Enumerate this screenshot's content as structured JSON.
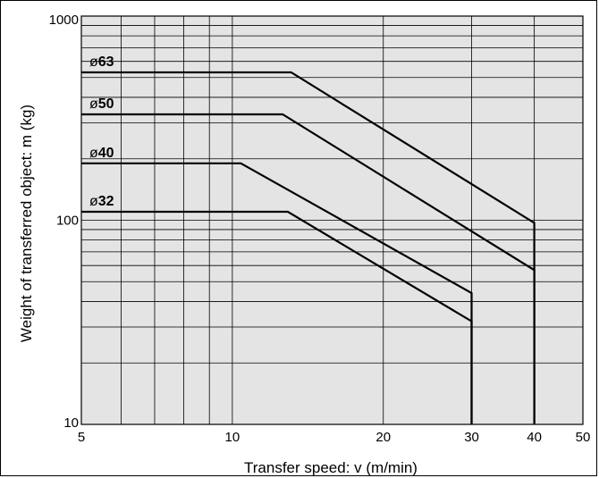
{
  "chart_data": {
    "type": "line",
    "title": "",
    "xlabel": "Transfer speed: v (m/min)",
    "ylabel": "Weight  of transferred object: m (kg)",
    "x_scale": "log",
    "y_scale": "log",
    "xlim": [
      5,
      50
    ],
    "ylim": [
      10,
      1000
    ],
    "x_ticks": [
      5,
      10,
      20,
      30,
      40,
      50
    ],
    "y_ticks": [
      10,
      100,
      1000
    ],
    "x_grid": [
      5,
      6,
      7,
      8,
      9,
      10,
      20,
      30,
      40,
      50
    ],
    "y_grid": [
      10,
      20,
      30,
      40,
      50,
      60,
      70,
      80,
      90,
      100,
      200,
      300,
      400,
      500,
      600,
      700,
      800,
      900,
      1000
    ],
    "grid": true,
    "background_color": "#e4e4e4",
    "line_color": "#000000",
    "series": [
      {
        "name": "63",
        "prefix": "ø",
        "points": [
          [
            5,
            530
          ],
          [
            13.1,
            530
          ],
          [
            40,
            97
          ],
          [
            40,
            10
          ]
        ]
      },
      {
        "name": "50",
        "prefix": "ø",
        "points": [
          [
            5,
            330
          ],
          [
            12.6,
            330
          ],
          [
            40,
            57
          ],
          [
            40,
            10
          ]
        ]
      },
      {
        "name": "40",
        "prefix": "ø",
        "points": [
          [
            5,
            190
          ],
          [
            10.4,
            190
          ],
          [
            30,
            44
          ],
          [
            30,
            10
          ]
        ]
      },
      {
        "name": "32",
        "prefix": "ø",
        "points": [
          [
            5,
            110
          ],
          [
            12.9,
            110
          ],
          [
            30,
            32
          ],
          [
            30,
            10
          ]
        ]
      }
    ]
  }
}
